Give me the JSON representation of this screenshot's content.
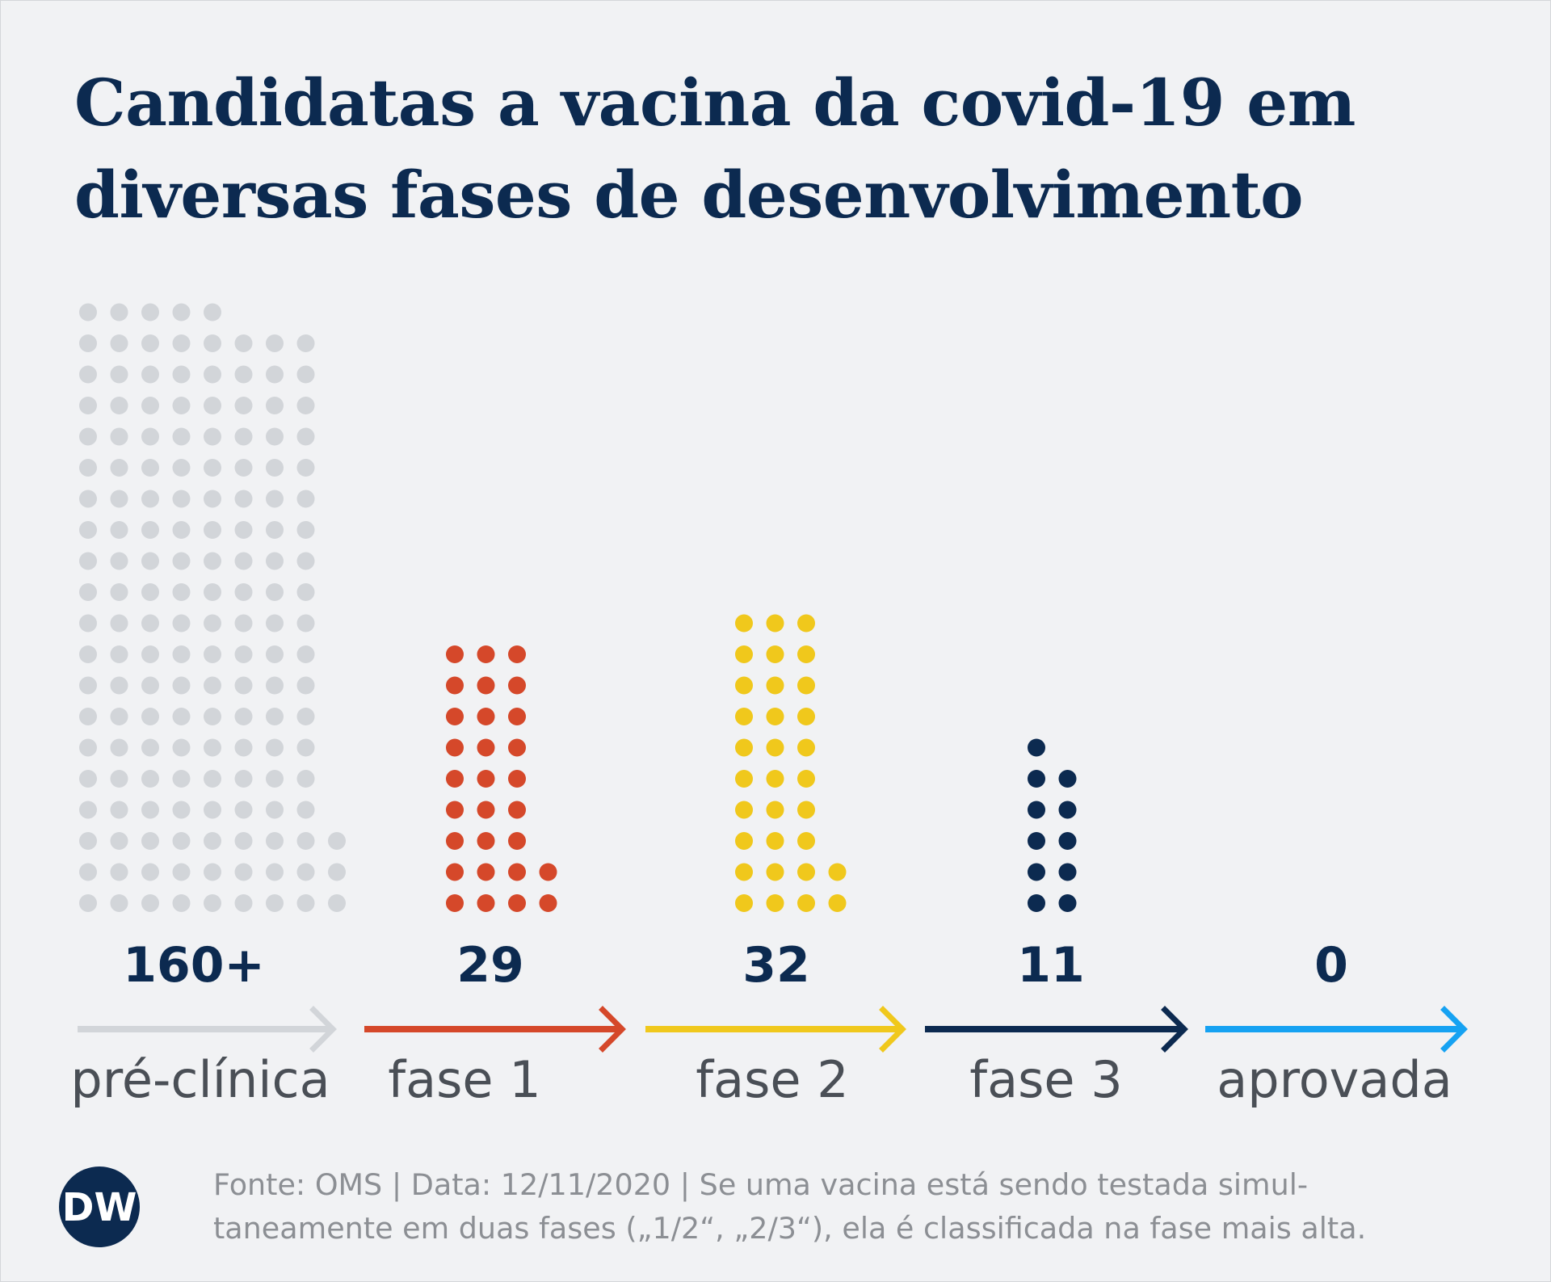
{
  "header": {
    "title": "Candidatas a vacina da covid-19 em diversas fases de desenvolvimento"
  },
  "chart_data": {
    "type": "bar",
    "title": "Candidatas a vacina da covid-19 em diversas fases de desenvolvimento",
    "categories": [
      "pré-clínica",
      "fase 1",
      "fase 2",
      "fase 3",
      "aprovada"
    ],
    "values": [
      160,
      29,
      32,
      11,
      0
    ],
    "value_labels": [
      "160+",
      "29",
      "32",
      "11",
      "0"
    ],
    "colors": [
      "#d2d5d9",
      "#d5482a",
      "#f0c81c",
      "#0c2a50",
      "#16a2f2"
    ],
    "representation": "one dot per vaccine candidate"
  },
  "footer": {
    "source": "Fonte: OMS | Data: 12/11/2020 | Se uma vacina está sendo testada simul-\ntaneamente em duas fases („1/2“, „2/3“), ela é classificada na fase mais alta.",
    "logo_text": "DW"
  },
  "colors": {
    "background": "#f1f2f4",
    "title": "#0c2a50",
    "label": "#4a4f56",
    "source": "#8c8f94"
  }
}
